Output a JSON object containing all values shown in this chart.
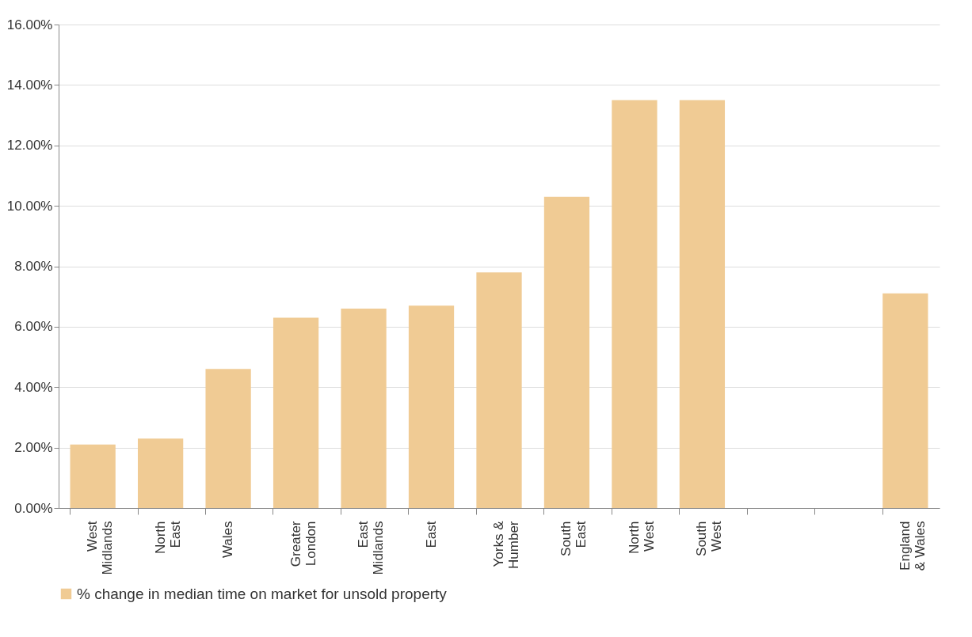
{
  "chart_data": {
    "type": "bar",
    "categories": [
      "West Midlands",
      "North East",
      "Wales",
      "Greater London",
      "East Midlands",
      "East",
      "Yorks & Humber",
      "South East",
      "North West",
      "South West",
      null,
      null,
      "England & Wales"
    ],
    "series": [
      {
        "name": "% change in median time on market for unsold property",
        "color": "#f0cb94",
        "values": [
          2.1,
          2.3,
          4.6,
          6.3,
          6.6,
          6.7,
          7.8,
          10.3,
          13.5,
          13.5,
          null,
          null,
          7.1
        ]
      }
    ],
    "ylim": [
      0,
      16
    ],
    "yticks": [
      {
        "value": 0,
        "label": "0.00%"
      },
      {
        "value": 2,
        "label": "2.00%"
      },
      {
        "value": 4,
        "label": "4.00%"
      },
      {
        "value": 6,
        "label": "6.00%"
      },
      {
        "value": 8,
        "label": "8.00%"
      },
      {
        "value": 10,
        "label": "10.00%"
      },
      {
        "value": 12,
        "label": "12.00%"
      },
      {
        "value": 14,
        "label": "14.00%"
      },
      {
        "value": 16,
        "label": "16.00%"
      }
    ],
    "grid": "y",
    "legend": "bottom left"
  }
}
